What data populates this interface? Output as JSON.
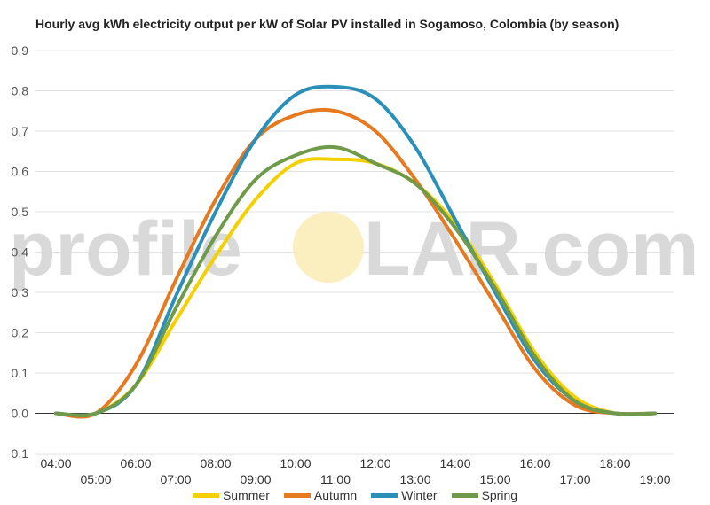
{
  "chart_data": {
    "type": "line",
    "title": "Hourly avg kWh electricity output per kW of Solar PV installed in Sogamoso, Colombia (by season)",
    "xlabel": "",
    "ylabel": "",
    "x": [
      "04:00",
      "05:00",
      "06:00",
      "07:00",
      "08:00",
      "09:00",
      "10:00",
      "11:00",
      "12:00",
      "13:00",
      "14:00",
      "15:00",
      "16:00",
      "17:00",
      "18:00",
      "19:00"
    ],
    "ylim": [
      -0.1,
      0.9
    ],
    "yticks": [
      "-0.1",
      "0.0",
      "0.1",
      "0.2",
      "0.3",
      "0.4",
      "0.5",
      "0.6",
      "0.7",
      "0.8",
      "0.9"
    ],
    "grid": true,
    "legend_position": "bottom",
    "series": [
      {
        "name": "Summer",
        "color": "#f5d000",
        "values": [
          0.0,
          0.0,
          0.07,
          0.23,
          0.39,
          0.53,
          0.62,
          0.63,
          0.62,
          0.57,
          0.47,
          0.32,
          0.15,
          0.04,
          0.0,
          0.0
        ]
      },
      {
        "name": "Autumn",
        "color": "#e67a21",
        "values": [
          0.0,
          0.0,
          0.12,
          0.33,
          0.53,
          0.68,
          0.74,
          0.75,
          0.7,
          0.58,
          0.43,
          0.27,
          0.11,
          0.02,
          0.0,
          0.0
        ]
      },
      {
        "name": "Winter",
        "color": "#2b90b9",
        "values": [
          0.0,
          0.0,
          0.07,
          0.29,
          0.5,
          0.68,
          0.79,
          0.81,
          0.78,
          0.66,
          0.48,
          0.3,
          0.13,
          0.03,
          0.0,
          0.0
        ]
      },
      {
        "name": "Spring",
        "color": "#6f9a4a",
        "values": [
          0.0,
          0.0,
          0.07,
          0.26,
          0.44,
          0.58,
          0.64,
          0.66,
          0.62,
          0.57,
          0.46,
          0.31,
          0.14,
          0.03,
          0.0,
          0.0
        ]
      }
    ]
  },
  "watermark": {
    "text_left": "profile",
    "text_right": "LAR.com",
    "sun_color": "#fbeebf"
  }
}
